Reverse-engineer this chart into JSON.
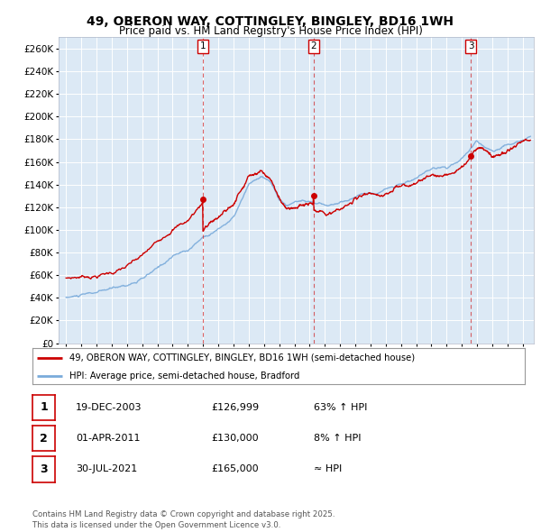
{
  "title": "49, OBERON WAY, COTTINGLEY, BINGLEY, BD16 1WH",
  "subtitle": "Price paid vs. HM Land Registry's House Price Index (HPI)",
  "bg_color": "#dce9f5",
  "red_color": "#cc0000",
  "blue_color": "#7aabdb",
  "ylim": [
    0,
    270000
  ],
  "yticks": [
    0,
    20000,
    40000,
    60000,
    80000,
    100000,
    120000,
    140000,
    160000,
    180000,
    200000,
    220000,
    240000,
    260000
  ],
  "sale_labels": [
    "1",
    "2",
    "3"
  ],
  "legend_line1": "49, OBERON WAY, COTTINGLEY, BINGLEY, BD16 1WH (semi-detached house)",
  "legend_line2": "HPI: Average price, semi-detached house, Bradford",
  "table_data": [
    [
      "1",
      "19-DEC-2003",
      "£126,999",
      "63% ↑ HPI"
    ],
    [
      "2",
      "01-APR-2011",
      "£130,000",
      "8% ↑ HPI"
    ],
    [
      "3",
      "30-JUL-2021",
      "£165,000",
      "≈ HPI"
    ]
  ],
  "footer": "Contains HM Land Registry data © Crown copyright and database right 2025.\nThis data is licensed under the Open Government Licence v3.0.",
  "xstart": 1994.5,
  "xend": 2025.7
}
